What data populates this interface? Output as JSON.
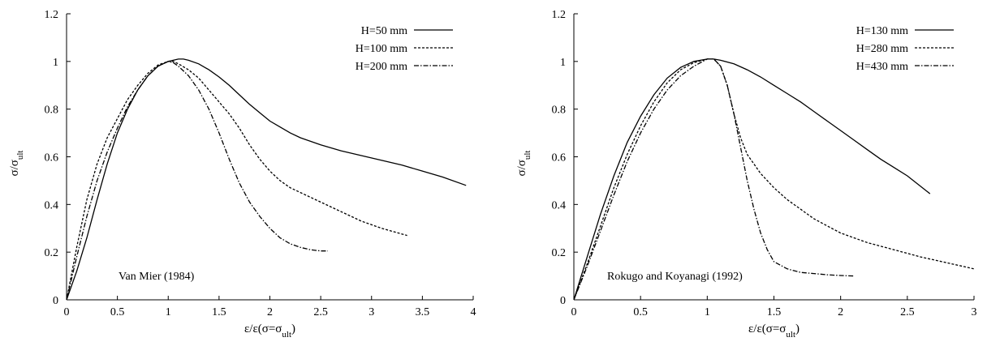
{
  "chart_data": [
    {
      "type": "line",
      "ylabel": "σ/σ_ult",
      "xlabel": "ε/ε(σ=σ_ult)",
      "xlim": [
        0,
        4
      ],
      "ylim": [
        0,
        1.2
      ],
      "xticks": [
        0,
        0.5,
        1,
        1.5,
        2,
        2.5,
        3,
        3.5,
        4
      ],
      "xtick_labels": [
        "0",
        "0.5",
        "1",
        "1.5",
        "2",
        "2.5",
        "3",
        "3.5",
        "4"
      ],
      "yticks": [
        0,
        0.2,
        0.4,
        0.6,
        0.8,
        1,
        1.2
      ],
      "ytick_labels": [
        "0",
        "0.2",
        "0.4",
        "0.6",
        "0.8",
        "1",
        "1.2"
      ],
      "grid": false,
      "legend": "top-right",
      "annotation": "Van Mier (1984)",
      "series": [
        {
          "name": "H=50 mm",
          "style": "solid",
          "x": [
            0,
            0.1,
            0.2,
            0.3,
            0.4,
            0.5,
            0.6,
            0.7,
            0.8,
            0.9,
            1.0,
            1.1,
            1.15,
            1.2,
            1.3,
            1.4,
            1.5,
            1.6,
            1.7,
            1.8,
            1.9,
            2.0,
            2.1,
            2.2,
            2.3,
            2.4,
            2.5,
            2.7,
            2.9,
            3.1,
            3.3,
            3.5,
            3.7,
            3.93
          ],
          "y": [
            0,
            0.12,
            0.26,
            0.42,
            0.57,
            0.7,
            0.8,
            0.88,
            0.94,
            0.98,
            1.0,
            1.01,
            1.01,
            1.005,
            0.99,
            0.965,
            0.935,
            0.9,
            0.86,
            0.82,
            0.785,
            0.75,
            0.725,
            0.7,
            0.68,
            0.665,
            0.65,
            0.625,
            0.605,
            0.585,
            0.565,
            0.54,
            0.515,
            0.48
          ]
        },
        {
          "name": "H=100 mm",
          "style": "dashed",
          "x": [
            0,
            0.1,
            0.2,
            0.3,
            0.4,
            0.5,
            0.6,
            0.7,
            0.8,
            0.9,
            1.0,
            1.05,
            1.1,
            1.2,
            1.3,
            1.4,
            1.5,
            1.6,
            1.7,
            1.8,
            1.9,
            2.0,
            2.1,
            2.2,
            2.3,
            2.5,
            2.7,
            2.9,
            3.1,
            3.35
          ],
          "y": [
            0,
            0.22,
            0.42,
            0.57,
            0.68,
            0.76,
            0.84,
            0.9,
            0.95,
            0.985,
            1.0,
            1.0,
            0.99,
            0.965,
            0.93,
            0.88,
            0.83,
            0.78,
            0.72,
            0.65,
            0.59,
            0.54,
            0.5,
            0.47,
            0.45,
            0.41,
            0.37,
            0.33,
            0.3,
            0.27
          ]
        },
        {
          "name": "H=200 mm",
          "style": "dashdot",
          "x": [
            0,
            0.1,
            0.2,
            0.3,
            0.4,
            0.5,
            0.6,
            0.7,
            0.8,
            0.9,
            1.0,
            1.05,
            1.1,
            1.2,
            1.3,
            1.4,
            1.5,
            1.6,
            1.7,
            1.8,
            1.9,
            2.0,
            2.1,
            2.2,
            2.3,
            2.4,
            2.5,
            2.57
          ],
          "y": [
            0,
            0.18,
            0.35,
            0.5,
            0.62,
            0.72,
            0.81,
            0.88,
            0.94,
            0.98,
            1.0,
            0.995,
            0.98,
            0.94,
            0.88,
            0.8,
            0.7,
            0.59,
            0.49,
            0.41,
            0.35,
            0.3,
            0.26,
            0.235,
            0.22,
            0.21,
            0.205,
            0.205
          ]
        }
      ]
    },
    {
      "type": "line",
      "ylabel": "σ/σ_ult",
      "xlabel": "ε/ε(σ=σ_ult)",
      "xlim": [
        0,
        3
      ],
      "ylim": [
        0,
        1.2
      ],
      "xticks": [
        0,
        0.5,
        1,
        1.5,
        2,
        2.5,
        3
      ],
      "xtick_labels": [
        "0",
        "0.5",
        "1",
        "1.5",
        "2",
        "2.5",
        "3"
      ],
      "yticks": [
        0,
        0.2,
        0.4,
        0.6,
        0.8,
        1,
        1.2
      ],
      "ytick_labels": [
        "0",
        "0.2",
        "0.4",
        "0.6",
        "0.8",
        "1",
        "1.2"
      ],
      "grid": false,
      "legend": "top-right",
      "annotation": "Rokugo and Koyanagi (1992)",
      "series": [
        {
          "name": "H=130 mm",
          "style": "solid",
          "x": [
            0,
            0.1,
            0.2,
            0.3,
            0.4,
            0.5,
            0.6,
            0.7,
            0.8,
            0.9,
            1.0,
            1.05,
            1.1,
            1.2,
            1.3,
            1.4,
            1.5,
            1.6,
            1.7,
            1.8,
            1.9,
            2.0,
            2.1,
            2.2,
            2.3,
            2.4,
            2.5,
            2.67
          ],
          "y": [
            0,
            0.18,
            0.36,
            0.52,
            0.66,
            0.77,
            0.86,
            0.93,
            0.975,
            1.0,
            1.01,
            1.01,
            1.005,
            0.99,
            0.965,
            0.935,
            0.9,
            0.865,
            0.83,
            0.79,
            0.75,
            0.71,
            0.67,
            0.63,
            0.59,
            0.555,
            0.52,
            0.445
          ]
        },
        {
          "name": "H=280 mm",
          "style": "dashed",
          "x": [
            0,
            0.1,
            0.2,
            0.3,
            0.4,
            0.5,
            0.6,
            0.7,
            0.8,
            0.9,
            1.0,
            1.05,
            1.1,
            1.15,
            1.2,
            1.25,
            1.3,
            1.4,
            1.5,
            1.6,
            1.7,
            1.8,
            1.9,
            2.0,
            2.2,
            2.4,
            2.6,
            2.8,
            3.0
          ],
          "y": [
            0,
            0.15,
            0.31,
            0.47,
            0.61,
            0.73,
            0.83,
            0.91,
            0.965,
            0.995,
            1.01,
            1.01,
            0.98,
            0.9,
            0.78,
            0.68,
            0.61,
            0.53,
            0.47,
            0.42,
            0.38,
            0.34,
            0.31,
            0.28,
            0.24,
            0.21,
            0.18,
            0.155,
            0.13
          ]
        },
        {
          "name": "H=430 mm",
          "style": "dashdot",
          "x": [
            0,
            0.1,
            0.2,
            0.3,
            0.4,
            0.5,
            0.6,
            0.7,
            0.8,
            0.9,
            1.0,
            1.05,
            1.1,
            1.15,
            1.2,
            1.25,
            1.3,
            1.35,
            1.4,
            1.45,
            1.5,
            1.6,
            1.7,
            1.8,
            1.9,
            2.0,
            2.1
          ],
          "y": [
            0,
            0.14,
            0.29,
            0.44,
            0.58,
            0.7,
            0.8,
            0.88,
            0.94,
            0.98,
            1.01,
            1.01,
            0.98,
            0.9,
            0.78,
            0.64,
            0.5,
            0.38,
            0.28,
            0.21,
            0.16,
            0.13,
            0.115,
            0.11,
            0.105,
            0.102,
            0.1
          ]
        }
      ]
    }
  ]
}
